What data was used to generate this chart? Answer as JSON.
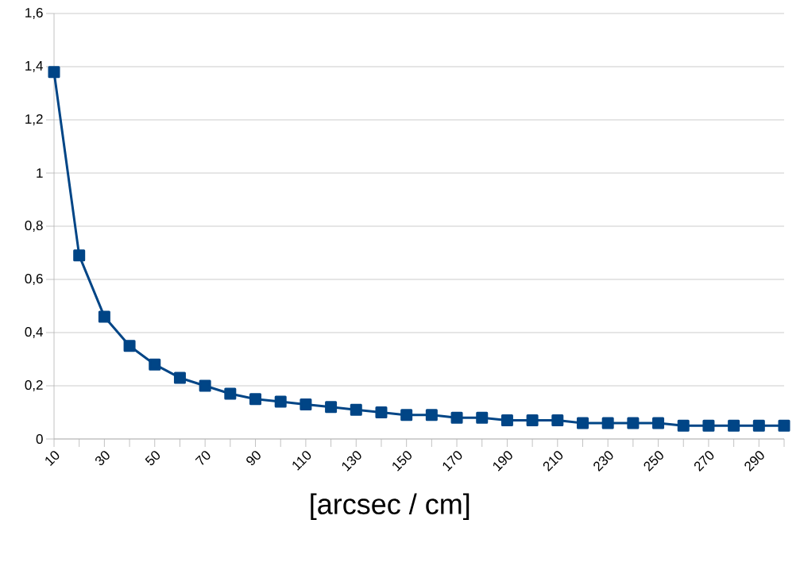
{
  "chart_data": {
    "type": "line",
    "xlabel": "[arcsec / cm]",
    "categories": [
      "10",
      null,
      "30",
      null,
      "50",
      null,
      "70",
      null,
      "90",
      null,
      "110",
      null,
      "130",
      null,
      "150",
      null,
      "170",
      null,
      "190",
      null,
      "210",
      null,
      "230",
      null,
      "250",
      null,
      "270",
      null,
      "290",
      null
    ],
    "series": [
      {
        "color": "#004586",
        "values": [
          1.38,
          0.69,
          0.46,
          0.35,
          0.28,
          0.23,
          0.2,
          0.17,
          0.15,
          0.14,
          0.13,
          0.12,
          0.11,
          0.1,
          0.09,
          0.09,
          0.08,
          0.08,
          0.07,
          0.07,
          0.07,
          0.06,
          0.06,
          0.06,
          0.06,
          0.05,
          0.05,
          0.05,
          0.05,
          0.05
        ]
      }
    ],
    "ylim": [
      0,
      1.6
    ],
    "yticks": [
      0,
      {
        "value": 0.2,
        "label": "0,2"
      },
      {
        "value": 0.4,
        "label": "0,4"
      },
      {
        "value": 0.6,
        "label": "0,6"
      },
      {
        "value": 0.8,
        "label": "0,8"
      },
      1,
      {
        "value": 1.2,
        "label": "1,2"
      },
      {
        "value": 1.4,
        "label": "1,4"
      },
      {
        "value": 1.6,
        "label": "1,6"
      }
    ],
    "grid": "y",
    "marker": "square",
    "line_style": "solid"
  }
}
